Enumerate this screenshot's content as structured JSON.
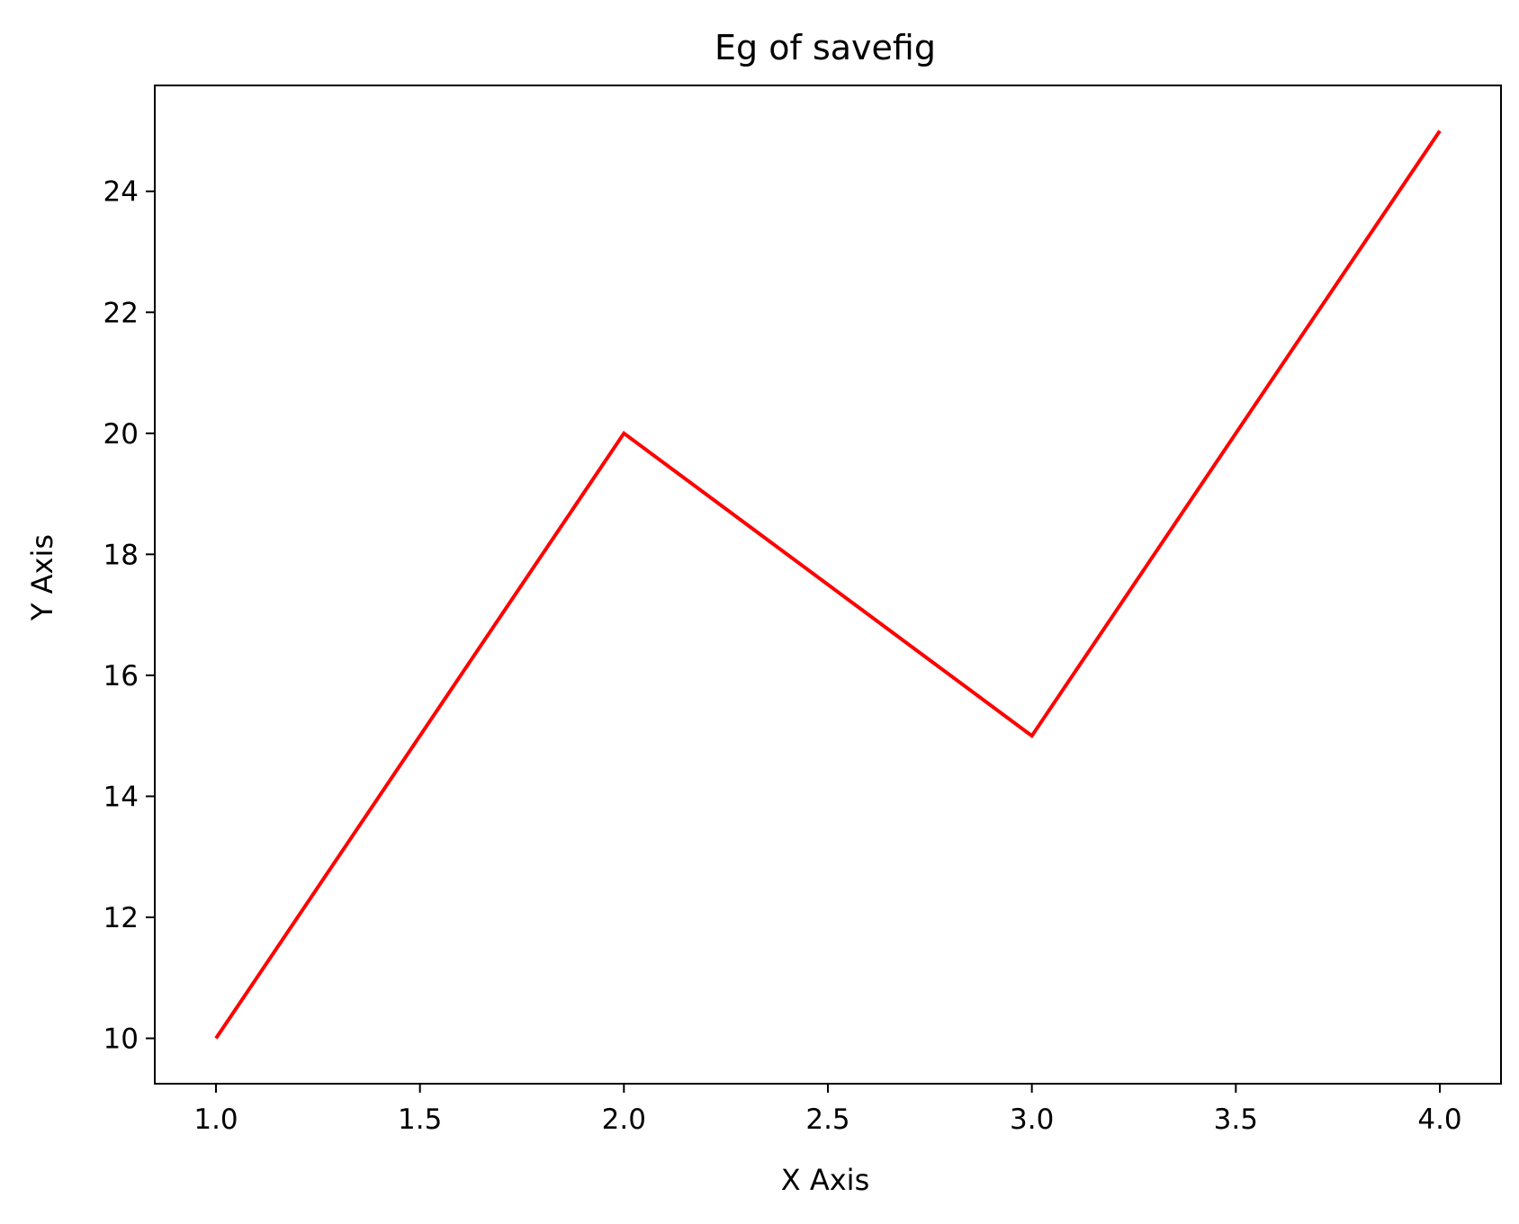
{
  "chart_data": {
    "type": "line",
    "title": "Eg of savefig",
    "xlabel": "X Axis",
    "ylabel": "Y Axis",
    "x": [
      1,
      2,
      3,
      4
    ],
    "series": [
      {
        "values": [
          10,
          20,
          15,
          25
        ],
        "color": "#ff0000"
      }
    ],
    "xlim": [
      0.85,
      4.15
    ],
    "ylim": [
      9.25,
      25.75
    ],
    "xticks": [
      1.0,
      1.5,
      2.0,
      2.5,
      3.0,
      3.5,
      4.0
    ],
    "xtick_labels": [
      "1.0",
      "1.5",
      "2.0",
      "2.5",
      "3.0",
      "3.5",
      "4.0"
    ],
    "yticks": [
      10,
      12,
      14,
      16,
      18,
      20,
      22,
      24
    ],
    "ytick_labels": [
      "10",
      "12",
      "14",
      "16",
      "18",
      "20",
      "22",
      "24"
    ],
    "grid": false,
    "legend": false
  }
}
